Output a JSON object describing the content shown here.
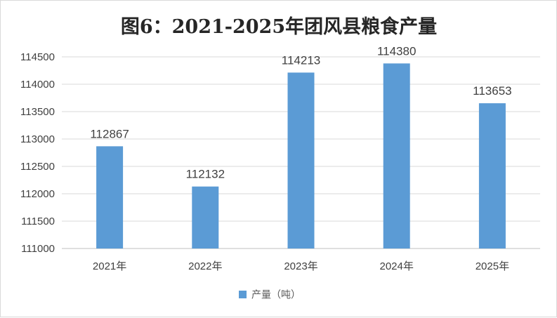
{
  "chart_data": {
    "type": "bar",
    "title": "图6：2021-2025年团风县粮食产量",
    "categories": [
      "2021年",
      "2022年",
      "2023年",
      "2024年",
      "2025年"
    ],
    "series": [
      {
        "name": "产量（吨）",
        "values": [
          112867,
          112132,
          114213,
          114380,
          113653
        ],
        "color": "#5b9bd5"
      }
    ],
    "data_labels": [
      "112867",
      "112132",
      "114213",
      "114380",
      "113653"
    ],
    "ylim": [
      111000,
      114500
    ],
    "yticks": [
      111000,
      111500,
      112000,
      112500,
      113000,
      113500,
      114000,
      114500
    ],
    "grid": true,
    "legend_position": "bottom"
  }
}
